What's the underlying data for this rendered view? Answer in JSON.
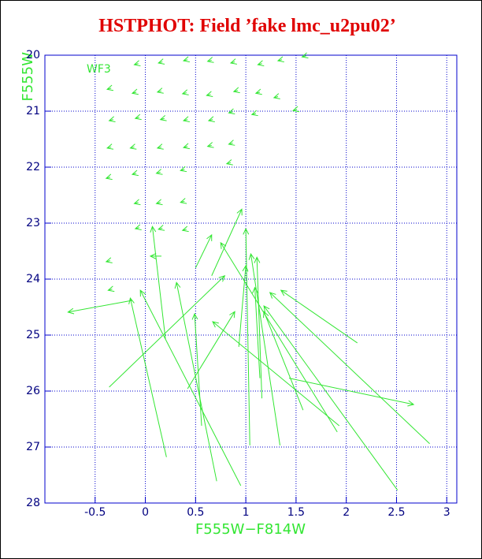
{
  "chart_data": {
    "type": "quiver",
    "title": "HSTPHOT: Field ’fake lmc_u2pu02’",
    "annotation": "WF3",
    "x_label": "F555W−F814W",
    "y_label": "F555W",
    "xlim": [
      -1.0,
      3.1
    ],
    "ylim": [
      28,
      20
    ],
    "xticks": [
      -0.5,
      0,
      0.5,
      1,
      1.5,
      2,
      2.5,
      3
    ],
    "yticks": [
      20,
      21,
      22,
      23,
      24,
      25,
      26,
      27,
      28
    ],
    "grid": true,
    "color": "#33e633",
    "arrows": {
      "x": [
        -0.13,
        0.21,
        0.95,
        0.71,
        -0.36,
        0.56,
        0.2,
        0.16,
        0.5,
        0.66,
        1.04,
        0.42,
        1.34,
        1.16,
        1.14,
        1.91,
        2.51,
        2.83,
        2.11,
        1.43,
        1.93,
        0.93,
        1.57,
        1.6,
        1.36,
        1.16,
        0.89,
        0.66,
        0.42,
        0.17,
        -0.07,
        -0.34,
        -0.09,
        0.16,
        0.41,
        0.65,
        0.92,
        1.14,
        1.32,
        1.51,
        1.1,
        0.87,
        0.67,
        0.42,
        0.19,
        -0.06,
        -0.32,
        -0.34,
        -0.11,
        0.16,
        0.42,
        0.66,
        0.87,
        0.85,
        0.39,
        0.15,
        -0.09,
        -0.35,
        -0.07,
        0.15,
        0.39,
        0.41,
        0.17,
        -0.06,
        -0.35,
        -0.33
      ],
      "y": [
        24.38,
        27.18,
        27.69,
        27.61,
        25.93,
        26.62,
        25.07,
        23.59,
        23.8,
        23.94,
        26.97,
        25.96,
        26.97,
        26.13,
        25.77,
        26.73,
        27.77,
        26.94,
        25.14,
        25.77,
        26.62,
        25.21,
        26.34,
        20.01,
        20.08,
        20.15,
        20.12,
        20.09,
        20.08,
        20.12,
        20.15,
        20.59,
        20.66,
        20.64,
        20.67,
        20.7,
        20.63,
        20.66,
        20.74,
        20.97,
        21.04,
        21.01,
        21.15,
        21.15,
        21.13,
        21.11,
        21.15,
        21.64,
        21.64,
        21.64,
        21.63,
        21.61,
        21.57,
        21.92,
        22.04,
        22.09,
        22.11,
        22.18,
        22.63,
        22.63,
        22.61,
        23.11,
        23.09,
        23.08,
        23.67,
        24.18
      ],
      "x_end": [
        -0.77,
        -0.15,
        -0.05,
        0.31,
        0.79,
        0.49,
        0.07,
        0.05,
        0.66,
        0.96,
        1.0,
        0.89,
        1.05,
        1.11,
        1.09,
        0.75,
        1.18,
        1.24,
        1.35,
        2.67,
        0.67,
        1.0,
        1.18,
        1.56,
        1.32,
        1.12,
        0.85,
        0.62,
        0.38,
        0.13,
        -0.11,
        -0.38,
        -0.13,
        0.12,
        0.37,
        0.61,
        0.88,
        1.1,
        1.28,
        1.47,
        1.06,
        0.83,
        0.63,
        0.38,
        0.15,
        -0.1,
        -0.36,
        -0.38,
        -0.15,
        0.12,
        0.38,
        0.62,
        0.83,
        0.81,
        0.35,
        0.11,
        -0.13,
        -0.39,
        -0.11,
        0.11,
        0.35,
        0.37,
        0.13,
        -0.1,
        -0.39,
        -0.37
      ],
      "y_end": [
        24.59,
        24.34,
        24.2,
        24.06,
        23.94,
        24.62,
        23.06,
        23.59,
        23.21,
        22.75,
        23.1,
        24.58,
        23.55,
        23.61,
        24.15,
        23.35,
        24.48,
        24.24,
        24.2,
        26.24,
        24.76,
        23.76,
        24.58,
        20.03,
        20.1,
        20.17,
        20.14,
        20.11,
        20.1,
        20.14,
        20.17,
        20.61,
        20.68,
        20.66,
        20.69,
        20.72,
        20.65,
        20.68,
        20.76,
        20.99,
        21.06,
        21.03,
        21.17,
        21.17,
        21.15,
        21.13,
        21.17,
        21.66,
        21.66,
        21.66,
        21.65,
        21.63,
        21.59,
        21.94,
        22.06,
        22.11,
        22.13,
        22.2,
        22.65,
        22.65,
        22.63,
        23.13,
        23.11,
        23.1,
        23.69,
        24.2
      ]
    }
  }
}
